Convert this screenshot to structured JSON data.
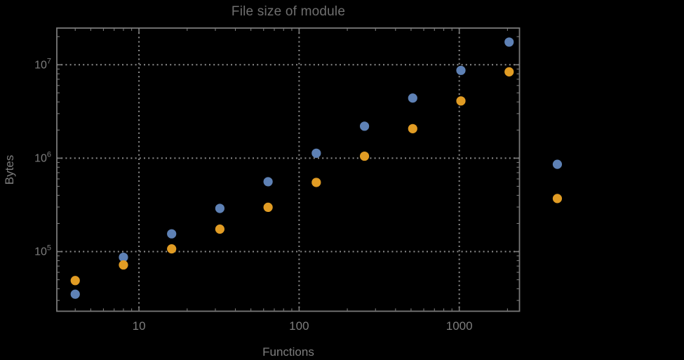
{
  "window": {
    "background": "#000000"
  },
  "colors": {
    "background": "#000000",
    "frame": "#7a7a7a",
    "grid": "#8c8c8c",
    "tick_label": "#7d7d7d",
    "axis_label": "#7d7d7d",
    "title": "#6f6f6f",
    "series_blue": "#5E81B5",
    "series_orange": "#E19C24"
  },
  "chart_data": {
    "type": "scatter",
    "title": "File size of module",
    "xlabel": "Functions",
    "ylabel": "Bytes",
    "x_scale": "log",
    "y_scale": "log",
    "grid": "dotted gridlines at decades, on",
    "legend": "none",
    "xlim": [
      3.07,
      2377
    ],
    "ylim": [
      23000,
      24700000
    ],
    "x_ticks": {
      "major": [
        10,
        100,
        1000
      ],
      "labels": [
        "10",
        "100",
        "1000"
      ]
    },
    "y_ticks": {
      "base": "10",
      "major": [
        100000,
        1000000,
        10000000
      ],
      "exponents": [
        5,
        6,
        7
      ]
    },
    "series": [
      {
        "name": "blue",
        "color": "#5E81B5",
        "points": [
          [
            4,
            35000
          ],
          [
            8,
            87000
          ],
          [
            16,
            155000
          ],
          [
            32,
            290000
          ],
          [
            64,
            560000
          ],
          [
            128,
            1130000
          ],
          [
            256,
            2200000
          ],
          [
            512,
            4400000
          ],
          [
            1024,
            8700000
          ],
          [
            2048,
            17500000
          ],
          [
            4096,
            860000
          ]
        ]
      },
      {
        "name": "orange",
        "color": "#E19C24",
        "points": [
          [
            4,
            49000
          ],
          [
            8,
            72000
          ],
          [
            16,
            107000
          ],
          [
            32,
            174000
          ],
          [
            64,
            298000
          ],
          [
            128,
            550000
          ],
          [
            256,
            1050000
          ],
          [
            512,
            2070000
          ],
          [
            1024,
            4100000
          ],
          [
            2048,
            8400000
          ],
          [
            4096,
            370000
          ]
        ]
      }
    ]
  }
}
